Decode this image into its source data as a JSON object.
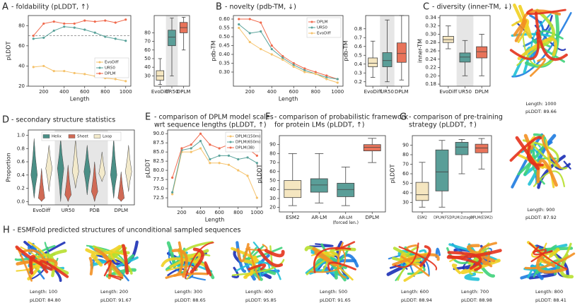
{
  "chart_data": [
    {
      "type": "line",
      "label": "A",
      "title": "- foldability (pLDDT, ↑)",
      "xlabel": "Length",
      "ylabel": "pLDDT",
      "x": [
        100,
        200,
        300,
        400,
        500,
        600,
        700,
        800,
        900,
        1000
      ],
      "xlim": [
        50,
        1050
      ],
      "xticks": [
        200,
        400,
        600,
        800,
        1000
      ],
      "ylim": [
        20,
        90
      ],
      "yticks": [
        20,
        40,
        60,
        80
      ],
      "hline": 70,
      "legend": "lower right",
      "series": [
        {
          "name": "EvoDiff",
          "color": "#f5c26b",
          "values": [
            39,
            40,
            35,
            35,
            33,
            32,
            30,
            28,
            27,
            25
          ]
        },
        {
          "name": "UR50",
          "color": "#5aa39b",
          "values": [
            67,
            68,
            75,
            79,
            78,
            76,
            73,
            69,
            67,
            65
          ]
        },
        {
          "name": "DPLM",
          "color": "#f06a4d",
          "values": [
            70,
            82,
            84,
            82,
            82,
            85,
            84,
            85,
            83,
            86
          ]
        }
      ]
    },
    {
      "type": "box",
      "categories": [
        "EvoDiff",
        "UR50",
        "DPLM"
      ],
      "colors": [
        "#f5e6c0",
        "#5a9e98",
        "#e8735a"
      ],
      "shade": [
        1
      ],
      "ylim": [
        18,
        100
      ],
      "yticks": [
        30,
        40,
        50,
        60,
        70,
        80
      ],
      "stats": [
        [
          20,
          25,
          30,
          36,
          50
        ],
        [
          30,
          65,
          75,
          83,
          97
        ],
        [
          60,
          80,
          86,
          92,
          98
        ]
      ]
    },
    {
      "type": "line",
      "label": "B",
      "title": "- novelty (pdb-TM, ↓)",
      "xlabel": "Length",
      "ylabel": "pdb-TM",
      "x": [
        100,
        200,
        300,
        400,
        500,
        600,
        700,
        800,
        900,
        1000
      ],
      "xlim": [
        50,
        1050
      ],
      "xticks": [
        200,
        400,
        600,
        800,
        1000
      ],
      "ylim": [
        0.22,
        0.62
      ],
      "yticks": [
        {
          "value": 0.3,
          "label": "0.30"
        },
        0.35,
        {
          "value": 0.4,
          "label": "0.40"
        },
        0.45,
        {
          "value": 0.5,
          "label": "0.50"
        },
        0.55,
        {
          "value": 0.6,
          "label": "0.60"
        }
      ],
      "legend": "upper right",
      "series": [
        {
          "name": "DPLM",
          "color": "#f06a4d",
          "values": [
            0.6,
            0.6,
            0.58,
            0.45,
            0.39,
            0.35,
            0.32,
            0.3,
            0.28,
            0.26
          ]
        },
        {
          "name": "UR50",
          "color": "#5aa39b",
          "values": [
            0.57,
            0.52,
            0.53,
            0.43,
            0.38,
            0.34,
            0.31,
            0.29,
            0.27,
            0.26
          ]
        },
        {
          "name": "EvoDiff",
          "color": "#f5c26b",
          "values": [
            0.55,
            0.47,
            0.43,
            0.4,
            0.37,
            0.33,
            0.3,
            0.29,
            0.26,
            0.24
          ]
        }
      ]
    },
    {
      "type": "box",
      "ylabel": "pdb-TM",
      "categories": [
        "EvoDiff",
        "UR50",
        "DPLM"
      ],
      "colors": [
        "#f5e6c0",
        "#5a9e98",
        "#e8735a"
      ],
      "shade": [
        1
      ],
      "ylim": [
        0.15,
        0.95
      ],
      "yticks": [
        0.2,
        0.3,
        0.4,
        0.5,
        0.6,
        0.7,
        0.8
      ],
      "stats": [
        [
          0.25,
          0.37,
          0.41,
          0.47,
          0.66
        ],
        [
          0.2,
          0.37,
          0.44,
          0.53,
          0.9
        ],
        [
          0.22,
          0.42,
          0.52,
          0.64,
          0.95
        ]
      ]
    },
    {
      "type": "box",
      "label": "C",
      "title": "- diversity (inner-TM, ↓)",
      "ylabel": "inner-TM",
      "categories": [
        "EvoDiff",
        "UR50",
        "DPLM"
      ],
      "colors": [
        "#f5e6c0",
        "#5a9e98",
        "#e8735a"
      ],
      "shade": [
        1
      ],
      "ylim": [
        0.175,
        0.345
      ],
      "yticks": [
        0.18,
        {
          "value": 0.2,
          "label": "0.20"
        },
        0.22,
        0.24,
        0.26,
        0.28,
        {
          "value": 0.3,
          "label": "0.30"
        },
        0.32,
        0.34
      ],
      "stats": [
        [
          0.265,
          0.28,
          0.287,
          0.295,
          0.32
        ],
        [
          0.2,
          0.233,
          0.245,
          0.255,
          0.285
        ],
        [
          0.2,
          0.243,
          0.258,
          0.27,
          0.3
        ]
      ]
    },
    {
      "type": "violin",
      "label": "D",
      "title": "- secondary structure statistics",
      "ylabel": "Proportion",
      "categories": [
        "EvoDiff",
        "UR50",
        "PDB",
        "DPLM"
      ],
      "shade": [
        1,
        2
      ],
      "ylim": [
        -0.05,
        1.08
      ],
      "yticks": [
        {
          "value": 0,
          "label": "0.0"
        },
        0.2,
        0.4,
        0.6,
        0.8,
        {
          "value": 1,
          "label": "1.0"
        }
      ],
      "legend": "upper center",
      "series": [
        {
          "name": "Helix",
          "color": "#4a8f86",
          "values": [
            0.4,
            0.5,
            0.45,
            0.4
          ],
          "low": [
            0.05,
            0.0,
            0.1,
            0.05
          ],
          "high": [
            0.95,
            0.95,
            0.85,
            0.95
          ]
        },
        {
          "name": "Sheet",
          "color": "#d06a55",
          "values": [
            0.05,
            0.1,
            0.15,
            0.05
          ],
          "low": [
            0.0,
            0.0,
            0.0,
            0.0
          ],
          "high": [
            0.5,
            0.55,
            0.6,
            0.45
          ]
        },
        {
          "name": "Loop",
          "color": "#f3eacb",
          "values": [
            0.5,
            0.45,
            0.42,
            0.45
          ],
          "low": [
            0.15,
            0.2,
            0.3,
            0.15
          ],
          "high": [
            0.85,
            0.95,
            0.75,
            0.85
          ]
        }
      ]
    },
    {
      "type": "line",
      "label": "E",
      "title": [
        "- comparison of DPLM model scales",
        "wrt sequence lengths (pLDDT, ↑)"
      ],
      "xlabel": "Length",
      "ylabel": "pLDDT",
      "x": [
        100,
        200,
        300,
        400,
        500,
        600,
        700,
        800,
        900,
        1000
      ],
      "xlim": [
        50,
        1050
      ],
      "xticks": [
        200,
        400,
        600,
        800,
        1000
      ],
      "ylim": [
        70,
        91
      ],
      "yticks": [
        72.5,
        {
          "value": 75,
          "label": "75.0"
        },
        77.5,
        {
          "value": 80,
          "label": "80.0"
        },
        82.5,
        {
          "value": 85,
          "label": "85.0"
        },
        87.5,
        {
          "value": 90,
          "label": "90.0"
        }
      ],
      "legend": "upper right",
      "series": [
        {
          "name": "DPLM(150m)",
          "color": "#f5c26b",
          "values": [
            73.5,
            85,
            85,
            86,
            82,
            82,
            81.5,
            80,
            78.5,
            72.5
          ]
        },
        {
          "name": "DPLM(650m)",
          "color": "#5aa39b",
          "values": [
            74,
            85.5,
            86,
            88,
            83,
            84,
            84,
            83,
            83.5,
            82
          ]
        },
        {
          "name": "DPLM(3B)",
          "color": "#f06a4d",
          "values": [
            78,
            86,
            87,
            90,
            87,
            86,
            87,
            86.5,
            86,
            84
          ]
        }
      ]
    },
    {
      "type": "box",
      "label": "F",
      "title": [
        "- comparison of probabilistic framework",
        "for protein LMs (pLDDT, ↑)"
      ],
      "ylabel": "pLDDT",
      "categories": [
        "ESM2",
        "AR-LM",
        "AR-LM (forced len.)",
        "DPLM"
      ],
      "colors": [
        "#f5e6c0",
        "#5a9e98",
        "#5a9e98",
        "#e8735a"
      ],
      "shade": [],
      "ylim": [
        15,
        100
      ],
      "yticks": [
        20,
        30,
        40,
        50,
        60,
        70,
        80,
        90
      ],
      "stats": [
        [
          22,
          31,
          40,
          50,
          80
        ],
        [
          25,
          37,
          45,
          52,
          80
        ],
        [
          22,
          32,
          40,
          47,
          65
        ],
        [
          70,
          83,
          87,
          90,
          97
        ]
      ]
    },
    {
      "type": "box",
      "label": "G",
      "title": [
        "- comparison of pre-training",
        "strategy (pLDDT, ↑)"
      ],
      "ylabel": "pLDDT",
      "categories": [
        "ESM2",
        "DPLM(FS)",
        "DPLM(2stage)",
        "DPLM(ESM2)"
      ],
      "colors": [
        "#f5e6c0",
        "#5a9e98",
        "#5a9e98",
        "#e8735a"
      ],
      "shade": [],
      "ylim": [
        20,
        100
      ],
      "yticks": [
        30,
        40,
        50,
        60,
        70,
        80,
        90
      ],
      "stats": [
        [
          25,
          32,
          38,
          51,
          72
        ],
        [
          25,
          42,
          62,
          85,
          95
        ],
        [
          60,
          80,
          88,
          93,
          96
        ],
        [
          65,
          82,
          87,
          91,
          97
        ]
      ]
    }
  ],
  "side_structures": [
    {
      "length": "Length: 1000",
      "plddt": "pLDDT: 89.66"
    },
    {
      "length": "Length: 900",
      "plddt": "pLDDT: 87.92"
    }
  ],
  "panel_h": {
    "label": "H",
    "title": "- ESMFold predicted structures of unconditional sampled sequences",
    "structures": [
      {
        "length": "Length: 100",
        "plddt": "pLDDT: 84.80"
      },
      {
        "length": "Length: 200",
        "plddt": "pLDDT: 91.67"
      },
      {
        "length": "Length: 300",
        "plddt": "pLDDT: 88.65"
      },
      {
        "length": "Length: 400",
        "plddt": "pLDDT: 95.85"
      },
      {
        "length": "Length: 500",
        "plddt": "pLDDT: 91.65"
      },
      {
        "length": "Length: 600",
        "plddt": "pLDDT: 88.94"
      },
      {
        "length": "Length: 700",
        "plddt": "pLDDT: 88.98"
      },
      {
        "length": "Length: 800",
        "plddt": "pLDDT: 88.41"
      }
    ]
  }
}
